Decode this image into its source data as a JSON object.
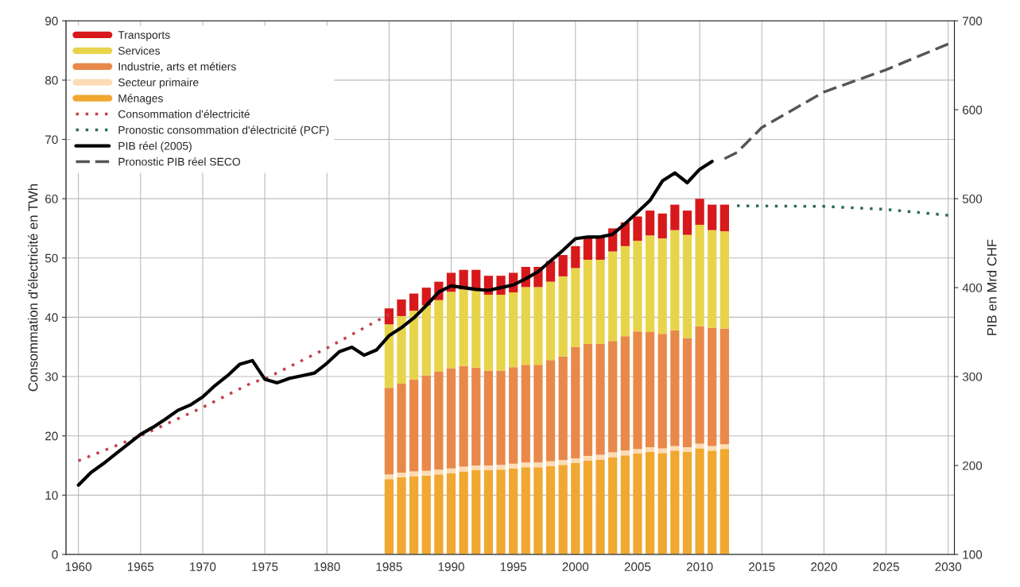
{
  "chart_data": {
    "type": "bar",
    "stacked": true,
    "ylabel": "Consommation d'électricité en TWh",
    "y2label": "PIB en Mrd CHF",
    "x": [
      1985,
      1986,
      1987,
      1988,
      1989,
      1990,
      1991,
      1992,
      1993,
      1994,
      1995,
      1996,
      1997,
      1998,
      1999,
      2000,
      2001,
      2002,
      2003,
      2004,
      2005,
      2006,
      2007,
      2008,
      2009,
      2010,
      2011,
      2012
    ],
    "series": [
      {
        "name": "Ménages",
        "color": "#f0a830",
        "values": [
          12.7,
          13.0,
          13.2,
          13.3,
          13.5,
          13.7,
          14.0,
          14.2,
          14.2,
          14.3,
          14.5,
          14.7,
          14.7,
          14.9,
          15.1,
          15.4,
          15.8,
          16.0,
          16.4,
          16.7,
          17.0,
          17.3,
          17.1,
          17.5,
          17.3,
          17.9,
          17.5,
          17.8
        ]
      },
      {
        "name": "Secteur primaire",
        "color": "#fcdcb4",
        "values": [
          0.8,
          0.8,
          0.8,
          0.8,
          0.8,
          0.8,
          0.8,
          0.8,
          0.8,
          0.8,
          0.8,
          0.8,
          0.8,
          0.8,
          0.8,
          0.8,
          0.8,
          0.8,
          0.8,
          0.8,
          0.8,
          0.8,
          0.8,
          0.8,
          0.8,
          0.8,
          0.8,
          0.8
        ]
      },
      {
        "name": "Industrie, arts et métiers",
        "color": "#e8894a",
        "values": [
          14.6,
          15.0,
          15.5,
          16.1,
          16.5,
          16.9,
          17.0,
          16.5,
          16.0,
          15.9,
          16.3,
          16.5,
          16.5,
          17.1,
          17.5,
          18.8,
          18.9,
          18.7,
          18.8,
          19.3,
          19.8,
          19.4,
          19.3,
          19.5,
          18.4,
          19.8,
          19.9,
          19.5
        ]
      },
      {
        "name": "Services",
        "color": "#e8d44a",
        "values": [
          10.7,
          11.4,
          11.6,
          11.8,
          12.1,
          12.9,
          12.9,
          13.2,
          12.8,
          12.8,
          12.6,
          13.1,
          13.1,
          13.2,
          13.5,
          13.3,
          14.2,
          14.2,
          15.1,
          15.2,
          15.3,
          16.3,
          16.1,
          16.9,
          17.4,
          17.1,
          16.5,
          16.4
        ]
      },
      {
        "name": "Transports",
        "color": "#d7191c",
        "values": [
          2.7,
          2.8,
          2.9,
          3.0,
          3.1,
          3.2,
          3.3,
          3.3,
          3.2,
          3.2,
          3.3,
          3.4,
          3.4,
          3.5,
          3.6,
          3.7,
          3.8,
          3.8,
          3.9,
          4.0,
          4.1,
          4.2,
          4.2,
          4.3,
          4.1,
          4.4,
          4.3,
          4.5
        ]
      },
      {
        "name": "Consommation d'électricité",
        "type": "line",
        "color": "#c0404a",
        "line_style": "dotted",
        "x": [
          1960,
          1965,
          1970,
          1974,
          1975,
          1980,
          1985
        ],
        "values": [
          15.8,
          20.0,
          24.8,
          29.0,
          29.6,
          34.8,
          40.5
        ]
      },
      {
        "name": "Pronostic consommation d'électricité (PCF)",
        "type": "line",
        "color": "#2e6b57",
        "line_style": "dotted",
        "x": [
          2013,
          2020,
          2025,
          2030
        ],
        "values": [
          58.8,
          58.7,
          58.2,
          57.2
        ]
      },
      {
        "name": "PIB réel (2005)",
        "type": "line",
        "axis": "y2",
        "color": "#000000",
        "line_style": "solid",
        "x": [
          1960,
          1961,
          1962,
          1963,
          1964,
          1965,
          1966,
          1967,
          1968,
          1969,
          1970,
          1971,
          1972,
          1973,
          1974,
          1975,
          1976,
          1977,
          1978,
          1979,
          1980,
          1981,
          1982,
          1983,
          1984,
          1985,
          1986,
          1987,
          1988,
          1989,
          1990,
          1991,
          1992,
          1993,
          1994,
          1995,
          1996,
          1997,
          1998,
          1999,
          2000,
          2001,
          2002,
          2003,
          2004,
          2005,
          2006,
          2007,
          2008,
          2009,
          2010,
          2011
        ],
        "values": [
          178,
          192,
          202,
          213,
          224,
          235,
          243,
          252,
          262,
          268,
          277,
          290,
          301,
          314,
          318,
          297,
          293,
          298,
          301,
          304,
          315,
          328,
          333,
          324,
          330,
          346,
          355,
          366,
          380,
          395,
          402,
          400,
          398,
          397,
          400,
          403,
          410,
          418,
          430,
          442,
          455,
          457,
          457,
          460,
          472,
          485,
          498,
          520,
          529,
          518,
          533,
          542
        ]
      },
      {
        "name": "Pronostic PIB réel SECO",
        "type": "line",
        "axis": "y2",
        "color": "#555555",
        "line_style": "dashed",
        "x": [
          2012,
          2013,
          2015,
          2020,
          2022,
          2025,
          2030
        ],
        "values": [
          545,
          552,
          580,
          620,
          630,
          645,
          674
        ]
      }
    ],
    "xlim": [
      1959,
      2030.5
    ],
    "xticks": [
      1960,
      1965,
      1970,
      1975,
      1980,
      1985,
      1990,
      1995,
      2000,
      2005,
      2010,
      2015,
      2020,
      2025,
      2030
    ],
    "ylim": [
      0,
      90
    ],
    "yticks": [
      0,
      10,
      20,
      30,
      40,
      50,
      60,
      70,
      80,
      90
    ],
    "y2lim": [
      100,
      700
    ],
    "y2ticks": [
      100,
      200,
      300,
      400,
      500,
      600,
      700
    ],
    "grid": true,
    "legend": "top left"
  }
}
